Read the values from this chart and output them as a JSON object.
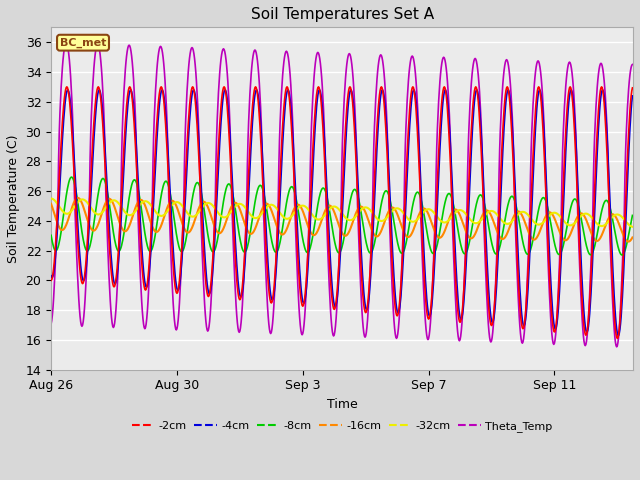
{
  "title": "Soil Temperatures Set A",
  "xlabel": "Time",
  "ylabel": "Soil Temperature (C)",
  "ylim": [
    14,
    37
  ],
  "xlim_days": [
    0,
    18.5
  ],
  "x_ticks_days": [
    0,
    4,
    8,
    12,
    16
  ],
  "x_tick_labels": [
    "Aug 26",
    "Aug 30",
    "Sep 3",
    "Sep 7",
    "Sep 11"
  ],
  "y_ticks": [
    14,
    16,
    18,
    20,
    22,
    24,
    26,
    28,
    30,
    32,
    34,
    36
  ],
  "bg_color": "#d8d8d8",
  "plot_bg_color": "#ebebeb",
  "annotation_text": "BC_met",
  "annotation_bg": "#ffff99",
  "annotation_border": "#8b4513",
  "line_colors": {
    "-2cm": "#ff0000",
    "-4cm": "#0000dd",
    "-8cm": "#00cc00",
    "-16cm": "#ff8800",
    "-32cm": "#eeee00",
    "Theta_Temp": "#bb00bb"
  },
  "line_widths": {
    "-2cm": 1.2,
    "-4cm": 1.2,
    "-8cm": 1.2,
    "-16cm": 1.5,
    "-32cm": 1.5,
    "Theta_Temp": 1.2
  },
  "num_days": 18.5,
  "dt": 0.02
}
